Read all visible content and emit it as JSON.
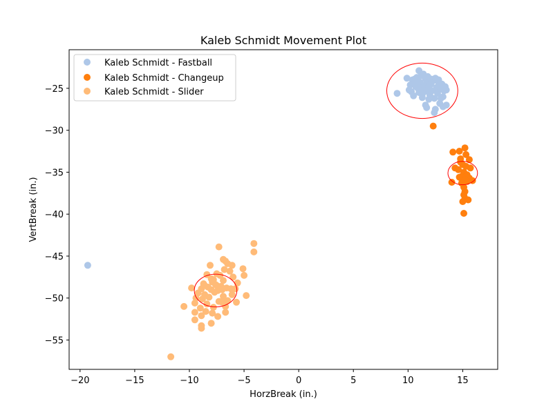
{
  "chart_data": {
    "type": "scatter",
    "title": "Kaleb Schmidt Movement Plot",
    "xlabel": "HorzBreak (in.)",
    "ylabel": "VertBreak (in.)",
    "xlim": [
      -21,
      18.2
    ],
    "ylim": [
      -58.5,
      -20.4
    ],
    "xticks": [
      -20,
      -15,
      -10,
      -5,
      0,
      5,
      10,
      15
    ],
    "xtick_labels": [
      "−20",
      "−15",
      "−10",
      "−5",
      "0",
      "5",
      "10",
      "15"
    ],
    "yticks": [
      -25,
      -30,
      -35,
      -40,
      -45,
      -50,
      -55
    ],
    "ytick_labels": [
      "−25",
      "−30",
      "−35",
      "−40",
      "−45",
      "−50",
      "−55"
    ],
    "grid": false,
    "legend_position": "top-left",
    "series": [
      {
        "name": "Kaleb Schmidt - Fastball",
        "color": "#aec7e8",
        "ellipse": {
          "cx": 11.3,
          "cy": -25.3,
          "rx": 3.25,
          "ry": 3.3
        },
        "points": [
          [
            9.0,
            -25.6
          ],
          [
            9.9,
            -23.8
          ],
          [
            10.2,
            -24.6
          ],
          [
            10.1,
            -25.2
          ],
          [
            10.4,
            -24.0
          ],
          [
            10.5,
            -25.9
          ],
          [
            10.6,
            -24.4
          ],
          [
            10.8,
            -23.7
          ],
          [
            10.9,
            -25.0
          ],
          [
            11.0,
            -22.9
          ],
          [
            11.0,
            -25.5
          ],
          [
            11.1,
            -24.3
          ],
          [
            11.2,
            -23.5
          ],
          [
            11.3,
            -24.9
          ],
          [
            11.3,
            -26.1
          ],
          [
            11.4,
            -23.3
          ],
          [
            11.5,
            -24.7
          ],
          [
            11.5,
            -25.4
          ],
          [
            11.6,
            -23.9
          ],
          [
            11.7,
            -24.4
          ],
          [
            11.8,
            -25.1
          ],
          [
            11.8,
            -23.6
          ],
          [
            11.9,
            -26.3
          ],
          [
            12.0,
            -24.6
          ],
          [
            12.0,
            -25.8
          ],
          [
            12.1,
            -23.9
          ],
          [
            12.2,
            -25.3
          ],
          [
            12.3,
            -24.1
          ],
          [
            12.4,
            -26.2
          ],
          [
            12.5,
            -23.8
          ],
          [
            12.6,
            -24.9
          ],
          [
            12.7,
            -25.6
          ],
          [
            12.8,
            -24.3
          ],
          [
            12.9,
            -26.8
          ],
          [
            13.0,
            -25.1
          ],
          [
            13.1,
            -24.5
          ],
          [
            13.2,
            -26.0
          ],
          [
            13.3,
            -25.3
          ],
          [
            13.4,
            -24.8
          ],
          [
            13.5,
            -25.2
          ],
          [
            12.5,
            -27.5
          ],
          [
            12.4,
            -27.9
          ],
          [
            13.2,
            -27.2
          ],
          [
            13.5,
            -27.0
          ],
          [
            11.7,
            -27.3
          ],
          [
            11.6,
            -27.0
          ],
          [
            12.8,
            -24.0
          ],
          [
            10.3,
            -25.4
          ],
          [
            10.7,
            -24.8
          ],
          [
            11.9,
            -24.8
          ],
          [
            11.3,
            -25.7
          ],
          [
            12.1,
            -24.5
          ],
          [
            10.6,
            -23.9
          ],
          [
            12.6,
            -23.9
          ],
          [
            13.0,
            -26.2
          ],
          [
            -19.3,
            -46.1
          ]
        ]
      },
      {
        "name": "Kaleb Schmidt - Changeup",
        "color": "#ff7f0e",
        "ellipse": {
          "cx": 15.0,
          "cy": -35.1,
          "rx": 1.35,
          "ry": 1.4
        },
        "points": [
          [
            12.3,
            -29.5
          ],
          [
            14.1,
            -32.6
          ],
          [
            14.7,
            -32.5
          ],
          [
            15.2,
            -32.1
          ],
          [
            15.3,
            -32.9
          ],
          [
            14.8,
            -33.4
          ],
          [
            15.6,
            -33.5
          ],
          [
            14.8,
            -33.8
          ],
          [
            15.0,
            -34.1
          ],
          [
            14.3,
            -34.5
          ],
          [
            14.6,
            -34.7
          ],
          [
            15.3,
            -34.3
          ],
          [
            15.7,
            -34.5
          ],
          [
            15.1,
            -35.0
          ],
          [
            15.4,
            -35.3
          ],
          [
            14.9,
            -35.5
          ],
          [
            15.0,
            -35.8
          ],
          [
            15.2,
            -35.6
          ],
          [
            15.6,
            -35.7
          ],
          [
            15.9,
            -36.0
          ],
          [
            14.0,
            -36.2
          ],
          [
            14.9,
            -36.3
          ],
          [
            15.4,
            -36.1
          ],
          [
            15.1,
            -36.8
          ],
          [
            15.2,
            -37.3
          ],
          [
            15.1,
            -37.7
          ],
          [
            15.2,
            -38.1
          ],
          [
            15.5,
            -38.3
          ],
          [
            15.0,
            -38.5
          ],
          [
            15.1,
            -39.9
          ],
          [
            15.2,
            -35.9
          ],
          [
            14.7,
            -35.6
          ]
        ]
      },
      {
        "name": "Kaleb Schmidt - Slider",
        "color": "#ffbb78",
        "ellipse": {
          "cx": -7.6,
          "cy": -49.1,
          "rx": 1.95,
          "ry": 1.95
        },
        "points": [
          [
            -4.1,
            -43.5
          ],
          [
            -4.1,
            -44.5
          ],
          [
            -7.3,
            -43.9
          ],
          [
            -6.9,
            -45.4
          ],
          [
            -6.7,
            -45.6
          ],
          [
            -6.5,
            -45.9
          ],
          [
            -8.1,
            -46.1
          ],
          [
            -6.1,
            -46.1
          ],
          [
            -6.8,
            -46.6
          ],
          [
            -6.3,
            -46.8
          ],
          [
            -5.1,
            -46.5
          ],
          [
            -7.5,
            -47.1
          ],
          [
            -7.2,
            -47.3
          ],
          [
            -8.4,
            -47.2
          ],
          [
            -6.0,
            -47.5
          ],
          [
            -5.0,
            -47.3
          ],
          [
            -8.0,
            -47.7
          ],
          [
            -7.8,
            -47.8
          ],
          [
            -6.9,
            -47.9
          ],
          [
            -5.6,
            -48.2
          ],
          [
            -8.7,
            -48.3
          ],
          [
            -7.9,
            -48.1
          ],
          [
            -7.5,
            -48.5
          ],
          [
            -8.3,
            -48.7
          ],
          [
            -7.1,
            -48.6
          ],
          [
            -6.6,
            -48.8
          ],
          [
            -6.2,
            -48.9
          ],
          [
            -9.8,
            -48.8
          ],
          [
            -8.9,
            -48.9
          ],
          [
            -8.0,
            -49.0
          ],
          [
            -7.4,
            -49.1
          ],
          [
            -5.8,
            -48.9
          ],
          [
            -9.2,
            -49.4
          ],
          [
            -8.6,
            -49.6
          ],
          [
            -7.7,
            -49.3
          ],
          [
            -6.9,
            -49.8
          ],
          [
            -6.1,
            -49.6
          ],
          [
            -4.8,
            -49.7
          ],
          [
            -9.4,
            -50.0
          ],
          [
            -8.8,
            -50.1
          ],
          [
            -8.2,
            -49.9
          ],
          [
            -7.3,
            -50.4
          ],
          [
            -6.5,
            -50.3
          ],
          [
            -9.5,
            -50.6
          ],
          [
            -8.4,
            -50.7
          ],
          [
            -7.0,
            -50.5
          ],
          [
            -5.7,
            -50.5
          ],
          [
            -10.5,
            -51.0
          ],
          [
            -9.0,
            -51.2
          ],
          [
            -7.8,
            -51.1
          ],
          [
            -6.7,
            -51.0
          ],
          [
            -8.5,
            -51.6
          ],
          [
            -7.9,
            -51.8
          ],
          [
            -9.5,
            -51.7
          ],
          [
            -6.7,
            -51.7
          ],
          [
            -8.9,
            -52.1
          ],
          [
            -7.4,
            -52.2
          ],
          [
            -9.5,
            -52.6
          ],
          [
            -8.0,
            -53.0
          ],
          [
            -8.9,
            -53.3
          ],
          [
            -8.9,
            -53.6
          ],
          [
            -11.7,
            -57.0
          ],
          [
            -8.6,
            -48.5
          ],
          [
            -7.6,
            -48.4
          ],
          [
            -7.0,
            -49.0
          ]
        ]
      }
    ]
  }
}
